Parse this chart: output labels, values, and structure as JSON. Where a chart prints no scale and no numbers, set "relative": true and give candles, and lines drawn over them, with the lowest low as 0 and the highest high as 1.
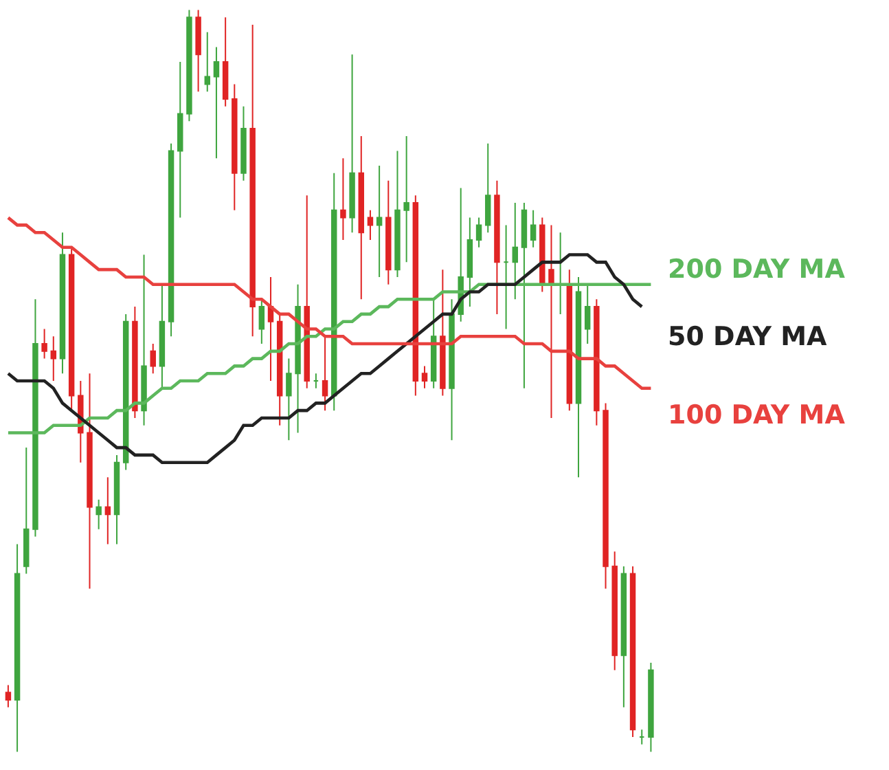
{
  "chart_data": {
    "type": "candlestick",
    "relative": true,
    "categories": [
      null,
      null,
      null,
      null,
      null,
      null,
      null,
      null,
      null,
      null,
      null,
      null,
      null,
      null,
      null,
      null,
      null,
      null,
      null,
      null,
      null,
      null,
      null,
      null,
      null,
      null,
      null,
      null,
      null,
      null,
      null,
      null,
      null,
      null,
      null,
      null,
      null,
      null,
      null,
      null,
      null,
      null,
      null,
      null,
      null,
      null,
      null,
      null,
      null,
      null,
      null,
      null,
      null,
      null,
      null,
      null,
      null,
      null,
      null,
      null,
      null,
      null,
      null,
      null,
      null,
      null,
      null,
      null,
      null,
      null,
      null,
      null
    ],
    "colors": [
      "#e02424",
      "#3fa53f",
      "#3fa53f",
      "#3fa53f",
      "#e02424",
      "#e02424",
      "#3fa53f",
      "#e02424",
      "#e02424",
      "#e02424",
      "#3fa53f",
      "#e02424",
      "#3fa53f",
      "#3fa53f",
      "#e02424",
      "#3fa53f",
      "#e02424",
      "#3fa53f",
      "#3fa53f",
      "#3fa53f",
      "#3fa53f",
      "#e02424",
      "#3fa53f",
      "#3fa53f",
      "#e02424",
      "#e02424",
      "#3fa53f",
      "#e02424",
      "#3fa53f",
      "#e02424",
      "#e02424",
      "#3fa53f",
      "#3fa53f",
      "#e02424",
      "#3fa53f",
      "#e02424",
      "#3fa53f",
      "#e02424",
      "#3fa53f",
      "#e02424",
      "#e02424",
      "#3fa53f",
      "#e02424",
      "#3fa53f",
      "#3fa53f",
      "#e02424",
      "#e02424",
      "#3fa53f",
      "#e02424",
      "#3fa53f",
      "#3fa53f",
      "#3fa53f",
      "#3fa53f",
      "#3fa53f",
      "#e02424",
      "#3fa53f",
      "#3fa53f",
      "#3fa53f",
      "#3fa53f",
      "#e02424",
      "#e02424",
      "#3fa53f",
      "#e02424",
      "#3fa53f",
      "#3fa53f",
      "#e02424",
      "#e02424",
      "#e02424",
      "#3fa53f",
      "#e02424",
      "#3fa53f",
      "#3fa53f"
    ],
    "ohlc": [
      [
        0.08,
        0.09,
        0.06,
        0.07
      ],
      [
        0.07,
        0.28,
        0,
        0.24
      ],
      [
        0.25,
        0.41,
        0.24,
        0.3
      ],
      [
        0.3,
        0.61,
        0.29,
        0.55
      ],
      [
        0.55,
        0.57,
        0.53,
        0.54
      ],
      [
        0.54,
        0.56,
        0.5,
        0.53
      ],
      [
        0.53,
        0.7,
        0.51,
        0.67
      ],
      [
        0.67,
        0.68,
        0.46,
        0.48
      ],
      [
        0.48,
        0.5,
        0.39,
        0.43
      ],
      [
        0.43,
        0.51,
        0.22,
        0.33
      ],
      [
        0.32,
        0.34,
        0.3,
        0.33
      ],
      [
        0.33,
        0.37,
        0.28,
        0.32
      ],
      [
        0.32,
        0.4,
        0.28,
        0.39
      ],
      [
        0.39,
        0.59,
        0.38,
        0.58
      ],
      [
        0.58,
        0.6,
        0.45,
        0.46
      ],
      [
        0.46,
        0.67,
        0.44,
        0.52
      ],
      [
        0.54,
        0.55,
        0.51,
        0.52
      ],
      [
        0.52,
        0.63,
        0.49,
        0.58
      ],
      [
        0.58,
        0.82,
        0.56,
        0.81
      ],
      [
        0.81,
        0.93,
        0.72,
        0.86
      ],
      [
        0.86,
        1,
        0.85,
        0.99
      ],
      [
        0.99,
        1,
        0.89,
        0.94
      ],
      [
        0.9,
        0.97,
        0.89,
        0.91
      ],
      [
        0.91,
        0.95,
        0.8,
        0.93
      ],
      [
        0.93,
        0.99,
        0.87,
        0.88
      ],
      [
        0.88,
        0.9,
        0.73,
        0.78
      ],
      [
        0.78,
        0.87,
        0.77,
        0.84
      ],
      [
        0.84,
        0.98,
        0.56,
        0.6
      ],
      [
        0.57,
        0.61,
        0.55,
        0.6
      ],
      [
        0.6,
        0.64,
        0.5,
        0.58
      ],
      [
        0.58,
        0.59,
        0.44,
        0.48
      ],
      [
        0.48,
        0.53,
        0.42,
        0.51
      ],
      [
        0.51,
        0.63,
        0.43,
        0.6
      ],
      [
        0.6,
        0.75,
        0.49,
        0.5
      ],
      [
        0.5,
        0.51,
        0.49,
        0.5
      ],
      [
        0.5,
        0.56,
        0.46,
        0.48
      ],
      [
        0.48,
        0.78,
        0.46,
        0.73
      ],
      [
        0.73,
        0.8,
        0.69,
        0.72
      ],
      [
        0.72,
        0.94,
        0.7,
        0.78
      ],
      [
        0.78,
        0.83,
        0.61,
        0.7
      ],
      [
        0.72,
        0.73,
        0.69,
        0.71
      ],
      [
        0.71,
        0.79,
        0.64,
        0.72
      ],
      [
        0.72,
        0.77,
        0.63,
        0.65
      ],
      [
        0.65,
        0.81,
        0.64,
        0.73
      ],
      [
        0.73,
        0.83,
        0.66,
        0.74
      ],
      [
        0.74,
        0.75,
        0.48,
        0.5
      ],
      [
        0.51,
        0.52,
        0.49,
        0.5
      ],
      [
        0.5,
        0.61,
        0.49,
        0.56
      ],
      [
        0.56,
        0.65,
        0.48,
        0.49
      ],
      [
        0.49,
        0.61,
        0.42,
        0.59
      ],
      [
        0.59,
        0.76,
        0.58,
        0.64
      ],
      [
        0.64,
        0.72,
        0.6,
        0.69
      ],
      [
        0.69,
        0.72,
        0.68,
        0.71
      ],
      [
        0.71,
        0.82,
        0.7,
        0.75
      ],
      [
        0.75,
        0.77,
        0.59,
        0.66
      ],
      [
        0.66,
        0.71,
        0.57,
        0.66
      ],
      [
        0.66,
        0.74,
        0.61,
        0.68
      ],
      [
        0.68,
        0.74,
        0.49,
        0.73
      ],
      [
        0.69,
        0.73,
        0.68,
        0.71
      ],
      [
        0.71,
        0.72,
        0.62,
        0.63
      ],
      [
        0.65,
        0.71,
        0.45,
        0.63
      ],
      [
        0.63,
        0.7,
        0.59,
        0.63
      ],
      [
        0.63,
        0.65,
        0.46,
        0.47
      ],
      [
        0.47,
        0.64,
        0.37,
        0.62
      ],
      [
        0.57,
        0.63,
        0.55,
        0.6
      ],
      [
        0.6,
        0.61,
        0.44,
        0.46
      ],
      [
        0.46,
        0.47,
        0.22,
        0.25
      ],
      [
        0.25,
        0.27,
        0.11,
        0.13
      ],
      [
        0.13,
        0.25,
        0.06,
        0.24
      ],
      [
        0.24,
        0.25,
        0.02,
        0.03
      ],
      [
        0.02,
        0.03,
        0.01,
        0.02
      ],
      [
        0.02,
        0.12,
        0,
        0.11
      ]
    ],
    "series": [
      {
        "type": "line",
        "name": "200 DAY MA",
        "color": "#5cb85c",
        "values": [
          0.43,
          0.43,
          0.43,
          0.43,
          0.43,
          0.44,
          0.44,
          0.44,
          0.44,
          0.45,
          0.45,
          0.45,
          0.46,
          0.46,
          0.47,
          0.47,
          0.48,
          0.49,
          0.49,
          0.5,
          0.5,
          0.5,
          0.51,
          0.51,
          0.51,
          0.52,
          0.52,
          0.53,
          0.53,
          0.54,
          0.54,
          0.55,
          0.55,
          0.56,
          0.56,
          0.57,
          0.57,
          0.58,
          0.58,
          0.59,
          0.59,
          0.6,
          0.6,
          0.61,
          0.61,
          0.61,
          0.61,
          0.61,
          0.62,
          0.62,
          0.62,
          0.62,
          0.63,
          0.63,
          0.63,
          0.63,
          0.63,
          0.63,
          0.63,
          0.63,
          0.63,
          0.63,
          0.63,
          0.63,
          0.63,
          0.63,
          0.63,
          0.63,
          0.63,
          0.63,
          0.63,
          0.63
        ]
      },
      {
        "type": "line",
        "name": "50 DAY MA",
        "color": "#222222",
        "values": [
          0.51,
          0.5,
          0.5,
          0.5,
          0.5,
          0.49,
          0.47,
          0.46,
          0.45,
          0.44,
          0.43,
          0.42,
          0.41,
          0.41,
          0.4,
          0.4,
          0.4,
          0.39,
          0.39,
          0.39,
          0.39,
          0.39,
          0.39,
          0.4,
          0.41,
          0.42,
          0.44,
          0.44,
          0.45,
          0.45,
          0.45,
          0.45,
          0.46,
          0.46,
          0.47,
          0.47,
          0.48,
          0.49,
          0.5,
          0.51,
          0.51,
          0.52,
          0.53,
          0.54,
          0.55,
          0.56,
          0.57,
          0.58,
          0.59,
          0.59,
          0.61,
          0.62,
          0.62,
          0.63,
          0.63,
          0.63,
          0.63,
          0.64,
          0.65,
          0.66,
          0.66,
          0.66,
          0.67,
          0.67,
          0.67,
          0.66,
          0.66,
          0.64,
          0.63,
          0.61,
          0.6,
          null
        ]
      },
      {
        "type": "line",
        "name": "100 DAY MA",
        "color": "#e8413e",
        "values": [
          0.72,
          0.71,
          0.71,
          0.7,
          0.7,
          0.69,
          0.68,
          0.68,
          0.67,
          0.66,
          0.65,
          0.65,
          0.65,
          0.64,
          0.64,
          0.64,
          0.63,
          0.63,
          0.63,
          0.63,
          0.63,
          0.63,
          0.63,
          0.63,
          0.63,
          0.63,
          0.62,
          0.61,
          0.61,
          0.6,
          0.59,
          0.59,
          0.58,
          0.57,
          0.57,
          0.56,
          0.56,
          0.56,
          0.55,
          0.55,
          0.55,
          0.55,
          0.55,
          0.55,
          0.55,
          0.55,
          0.55,
          0.55,
          0.55,
          0.55,
          0.56,
          0.56,
          0.56,
          0.56,
          0.56,
          0.56,
          0.56,
          0.55,
          0.55,
          0.55,
          0.54,
          0.54,
          0.54,
          0.53,
          0.53,
          0.53,
          0.52,
          0.52,
          0.51,
          0.5,
          0.49,
          0.49
        ]
      }
    ]
  }
}
